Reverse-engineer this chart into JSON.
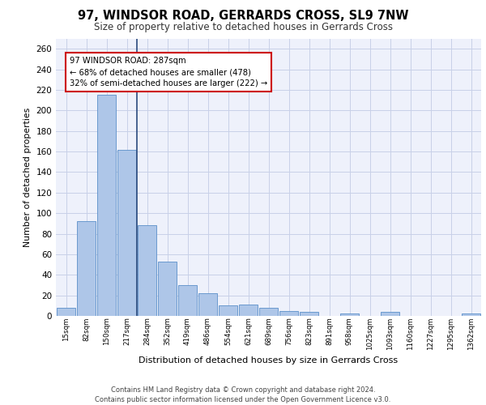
{
  "title": "97, WINDSOR ROAD, GERRARDS CROSS, SL9 7NW",
  "subtitle": "Size of property relative to detached houses in Gerrards Cross",
  "xlabel": "Distribution of detached houses by size in Gerrards Cross",
  "ylabel": "Number of detached properties",
  "bar_labels": [
    "15sqm",
    "82sqm",
    "150sqm",
    "217sqm",
    "284sqm",
    "352sqm",
    "419sqm",
    "486sqm",
    "554sqm",
    "621sqm",
    "689sqm",
    "756sqm",
    "823sqm",
    "891sqm",
    "958sqm",
    "1025sqm",
    "1093sqm",
    "1160sqm",
    "1227sqm",
    "1295sqm",
    "1362sqm"
  ],
  "bar_values": [
    8,
    92,
    215,
    162,
    88,
    53,
    30,
    22,
    10,
    11,
    8,
    5,
    4,
    0,
    2,
    0,
    4,
    0,
    0,
    0,
    2
  ],
  "bar_color": "#aec6e8",
  "bar_edge_color": "#5b8fc9",
  "vline_x_index": 3,
  "vline_color": "#2b4b7e",
  "annotation_text": "97 WINDSOR ROAD: 287sqm\n← 68% of detached houses are smaller (478)\n32% of semi-detached houses are larger (222) →",
  "annotation_box_color": "#ffffff",
  "annotation_box_edge": "#cc0000",
  "ylim": [
    0,
    270
  ],
  "yticks": [
    0,
    20,
    40,
    60,
    80,
    100,
    120,
    140,
    160,
    180,
    200,
    220,
    240,
    260
  ],
  "footer": "Contains HM Land Registry data © Crown copyright and database right 2024.\nContains public sector information licensed under the Open Government Licence v3.0.",
  "bg_color": "#eef1fb",
  "grid_color": "#c8d0e8"
}
